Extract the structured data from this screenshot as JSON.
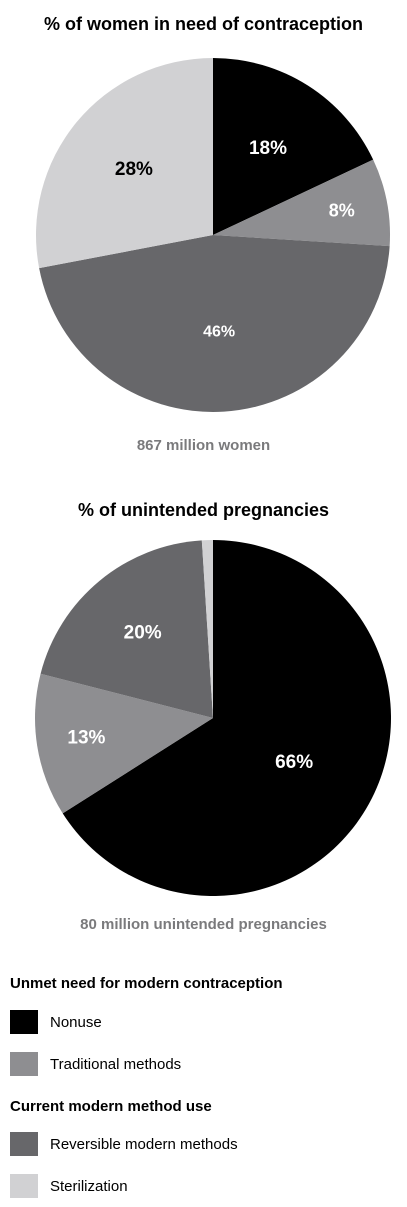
{
  "chart_data": [
    {
      "type": "pie",
      "title": "% of women in need of contraception",
      "caption": "867 million women",
      "slices": [
        {
          "category": "Nonuse",
          "value": 18,
          "label": "18%",
          "color": "#000000"
        },
        {
          "category": "Traditional methods",
          "value": 8,
          "label": "8%",
          "color": "#8e8e91"
        },
        {
          "category": "Reversible modern methods",
          "value": 46,
          "label": "46%",
          "color": "#67676a"
        },
        {
          "category": "Sterilization",
          "value": 28,
          "label": "28%",
          "color": "#d1d1d3"
        }
      ]
    },
    {
      "type": "pie",
      "title": "% of unintended pregnancies",
      "caption": "80 million unintended pregnancies",
      "slices": [
        {
          "category": "Nonuse",
          "value": 66,
          "label": "66%",
          "color": "#000000"
        },
        {
          "category": "Traditional methods",
          "value": 13,
          "label": "13%",
          "color": "#8e8e91"
        },
        {
          "category": "Reversible modern methods",
          "value": 20,
          "label": "20%",
          "color": "#67676a"
        },
        {
          "category": "Sterilization",
          "value": 1,
          "label": "",
          "color": "#d1d1d3"
        }
      ]
    }
  ],
  "legend": {
    "group1_heading": "Unmet need for modern contraception",
    "group2_heading": "Current modern method use",
    "items": [
      {
        "label": "Nonuse",
        "color": "#000000"
      },
      {
        "label": "Traditional methods",
        "color": "#8e8e91"
      },
      {
        "label": "Reversible modern methods",
        "color": "#67676a"
      },
      {
        "label": "Sterilization",
        "color": "#d1d1d3"
      }
    ]
  }
}
